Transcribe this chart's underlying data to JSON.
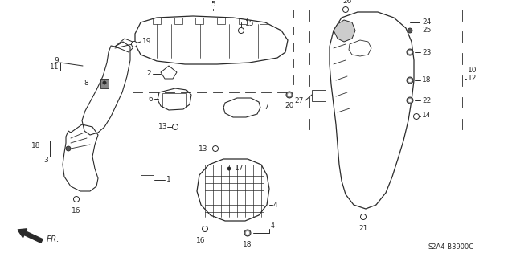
{
  "diagram_code": "S2A4-B3900C",
  "background_color": "#ffffff",
  "line_color": "#2a2a2a"
}
